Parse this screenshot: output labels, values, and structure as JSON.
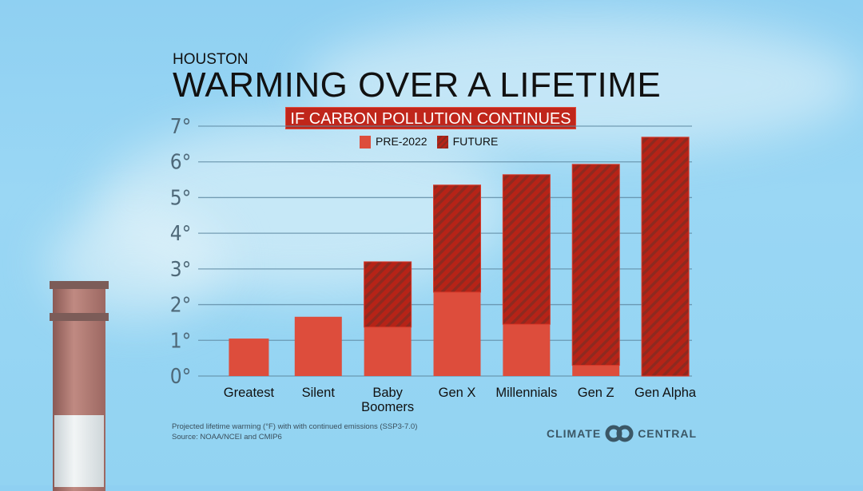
{
  "header": {
    "city": "HOUSTON",
    "title": "WARMING OVER A LIFETIME",
    "subtitle": "IF CARBON POLLUTION CONTINUES"
  },
  "footer": {
    "note": "Projected lifetime warming (°F) with with continued emissions (SSP3-7.0)",
    "source": "Source: NOAA/NCEI and CMIP6",
    "logo_left": "CLIMATE",
    "logo_right": "CENTRAL"
  },
  "colors": {
    "pre": "#dd4d3c",
    "future": "#b62317",
    "future_stripe": "#8a2a20",
    "grid": "#5f8aa3",
    "axis_text": "#4e6878"
  },
  "chart_data": {
    "type": "bar",
    "stacked": true,
    "title": "WARMING OVER A LIFETIME",
    "subtitle": "IF CARBON POLLUTION CONTINUES",
    "xlabel": "",
    "ylabel": "",
    "ylim": [
      0,
      7
    ],
    "yticks": [
      "0°",
      "1°",
      "2°",
      "3°",
      "4°",
      "5°",
      "6°",
      "7°"
    ],
    "grid": true,
    "legend_placement": "top-center",
    "categories": [
      "Greatest",
      "Silent",
      "Baby Boomers",
      "Gen X",
      "Millennials",
      "Gen Z",
      "Gen Alpha"
    ],
    "series": [
      {
        "name": "PRE-2022",
        "values": [
          1.05,
          1.66,
          1.37,
          2.35,
          1.45,
          0.3,
          0.0
        ]
      },
      {
        "name": "FUTURE",
        "values": [
          0.0,
          0.0,
          1.83,
          3.0,
          4.19,
          5.63,
          6.69
        ]
      }
    ]
  }
}
